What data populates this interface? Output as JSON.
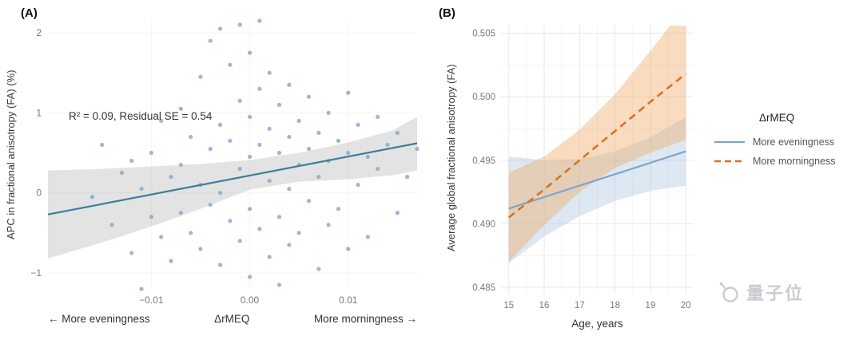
{
  "watermark": {
    "text": "量子位"
  },
  "chart_data": [
    {
      "type": "scatter",
      "tag": "(A)",
      "ylabel": "APC in fractional anisotropy (FA) (%)",
      "xlabel": "ΔrMEQ",
      "xlabel_left": "← More eveningness",
      "xlabel_right": "More morningness →",
      "annotation": "R² = 0.09, Residual SE = 0.54",
      "xlim": [
        -0.0205,
        0.017
      ],
      "ylim": [
        -1.2,
        2.15
      ],
      "xticks": [
        -0.01,
        0,
        0.01
      ],
      "xtick_labels": [
        "−0.01",
        "0.00",
        "0.01"
      ],
      "yticks": [
        -1,
        0,
        1,
        2
      ],
      "ytick_labels": [
        "−1",
        "0",
        "1",
        "2"
      ],
      "point_color": "#7fa8c9",
      "line_color": "#3e7e9b",
      "band_color": "#9a9a9a",
      "points": [
        [
          -0.016,
          -0.05
        ],
        [
          -0.015,
          0.6
        ],
        [
          -0.014,
          -0.4
        ],
        [
          -0.013,
          0.25
        ],
        [
          -0.012,
          -0.75
        ],
        [
          -0.012,
          0.4
        ],
        [
          -0.011,
          -1.2
        ],
        [
          -0.011,
          0.05
        ],
        [
          -0.01,
          0.5
        ],
        [
          -0.01,
          -0.3
        ],
        [
          -0.009,
          0.9
        ],
        [
          -0.009,
          -0.55
        ],
        [
          -0.008,
          0.2
        ],
        [
          -0.008,
          -0.85
        ],
        [
          -0.007,
          1.05
        ],
        [
          -0.007,
          0.35
        ],
        [
          -0.007,
          -0.25
        ],
        [
          -0.006,
          0.7
        ],
        [
          -0.006,
          -0.5
        ],
        [
          -0.005,
          1.45
        ],
        [
          -0.005,
          0.1
        ],
        [
          -0.005,
          -0.7
        ],
        [
          -0.004,
          1.9
        ],
        [
          -0.004,
          0.55
        ],
        [
          -0.004,
          -0.15
        ],
        [
          -0.003,
          2.05
        ],
        [
          -0.003,
          0.85
        ],
        [
          -0.003,
          0.0
        ],
        [
          -0.003,
          -0.9
        ],
        [
          -0.002,
          1.6
        ],
        [
          -0.002,
          0.65
        ],
        [
          -0.002,
          -0.35
        ],
        [
          -0.001,
          2.1
        ],
        [
          -0.001,
          1.15
        ],
        [
          -0.001,
          0.3
        ],
        [
          -0.001,
          -0.6
        ],
        [
          0.0,
          1.75
        ],
        [
          0.0,
          0.95
        ],
        [
          0.0,
          0.45
        ],
        [
          0.0,
          -0.2
        ],
        [
          0.0,
          -1.05
        ],
        [
          0.001,
          2.15
        ],
        [
          0.001,
          1.3
        ],
        [
          0.001,
          0.6
        ],
        [
          0.001,
          -0.45
        ],
        [
          0.002,
          1.5
        ],
        [
          0.002,
          0.8
        ],
        [
          0.002,
          0.15
        ],
        [
          0.002,
          -0.8
        ],
        [
          0.003,
          1.1
        ],
        [
          0.003,
          0.5
        ],
        [
          0.003,
          -0.3
        ],
        [
          0.003,
          -1.15
        ],
        [
          0.004,
          1.35
        ],
        [
          0.004,
          0.7
        ],
        [
          0.004,
          0.05
        ],
        [
          0.004,
          -0.65
        ],
        [
          0.005,
          0.9
        ],
        [
          0.005,
          0.35
        ],
        [
          0.005,
          -0.5
        ],
        [
          0.006,
          1.2
        ],
        [
          0.006,
          0.55
        ],
        [
          0.006,
          -0.1
        ],
        [
          0.007,
          0.75
        ],
        [
          0.007,
          0.2
        ],
        [
          0.007,
          -0.95
        ],
        [
          0.008,
          1.0
        ],
        [
          0.008,
          0.4
        ],
        [
          0.008,
          -0.4
        ],
        [
          0.009,
          0.65
        ],
        [
          0.009,
          -0.2
        ],
        [
          0.01,
          1.25
        ],
        [
          0.01,
          0.5
        ],
        [
          0.01,
          -0.7
        ],
        [
          0.011,
          0.85
        ],
        [
          0.011,
          0.1
        ],
        [
          0.012,
          0.45
        ],
        [
          0.012,
          -0.55
        ],
        [
          0.013,
          0.95
        ],
        [
          0.013,
          0.3
        ],
        [
          0.014,
          0.6
        ],
        [
          0.015,
          -0.25
        ],
        [
          0.015,
          0.75
        ],
        [
          0.016,
          0.2
        ],
        [
          0.017,
          0.55
        ]
      ],
      "regression": {
        "x": [
          -0.0205,
          0.017
        ],
        "y": [
          -0.27,
          0.62
        ]
      },
      "band": {
        "x": [
          -0.0205,
          -0.015,
          -0.01,
          -0.005,
          0.0,
          0.005,
          0.01,
          0.0145,
          0.017
        ],
        "upper": [
          0.28,
          0.3,
          0.33,
          0.36,
          0.41,
          0.5,
          0.63,
          0.78,
          0.95
        ],
        "lower": [
          -0.82,
          -0.62,
          -0.42,
          -0.2,
          0.04,
          0.14,
          0.17,
          0.22,
          0.28
        ]
      }
    },
    {
      "type": "line",
      "tag": "(B)",
      "ylabel": "Average global fractional anisotropy (FA)",
      "xlabel": "Age, years",
      "xlim": [
        14.78,
        20.22
      ],
      "ylim": [
        0.4845,
        0.5056
      ],
      "xticks": [
        15,
        16,
        17,
        18,
        19,
        20
      ],
      "xtick_labels": [
        "15",
        "16",
        "17",
        "18",
        "19",
        "20"
      ],
      "yticks": [
        0.485,
        0.49,
        0.495,
        0.5,
        0.505
      ],
      "ytick_labels": [
        "0.485",
        "0.490",
        "0.495",
        "0.500",
        "0.505"
      ],
      "legend": {
        "title": "ΔrMEQ",
        "items": [
          {
            "label": "More eveningness"
          },
          {
            "label": "More morningness"
          }
        ]
      },
      "series": [
        {
          "name": "More eveningness",
          "color": "#7aa6cb",
          "dash": false,
          "x": [
            15,
            16,
            17,
            18,
            19,
            20
          ],
          "y": [
            0.4912,
            0.4921,
            0.493,
            0.4939,
            0.4948,
            0.4957
          ],
          "band_upper": [
            0.4953,
            0.495,
            0.4951,
            0.4957,
            0.4968,
            0.4984
          ],
          "band_lower": [
            0.4869,
            0.489,
            0.4906,
            0.4918,
            0.4926,
            0.493
          ],
          "band_color": "#9dbedd",
          "band_opacity": 0.35
        },
        {
          "name": "More morningness",
          "color": "#d9711f",
          "dash": true,
          "x": [
            15,
            16,
            17,
            18,
            19,
            20
          ],
          "y": [
            0.4905,
            0.4927,
            0.495,
            0.4973,
            0.4996,
            0.5018
          ],
          "band_upper": [
            0.494,
            0.4953,
            0.4974,
            0.5002,
            0.5036,
            0.5072
          ],
          "band_lower": [
            0.487,
            0.4899,
            0.4925,
            0.4944,
            0.4956,
            0.4966
          ],
          "band_color": "#f0a860",
          "band_opacity": 0.4
        }
      ]
    }
  ]
}
